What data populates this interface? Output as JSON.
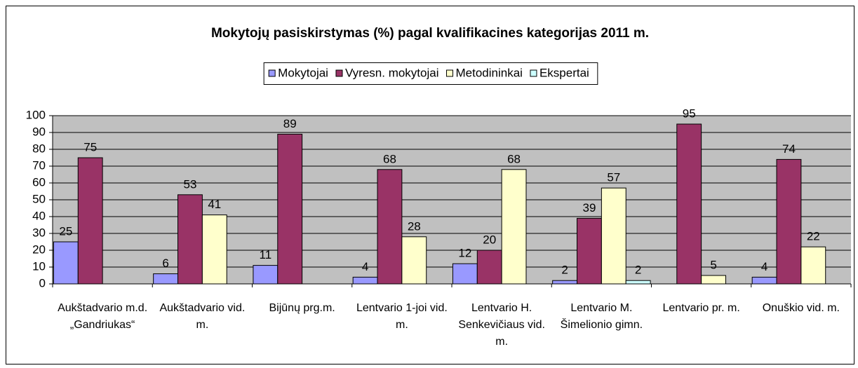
{
  "chart_data": {
    "type": "bar",
    "title": "Mokytojų pasiskirstymas (%) pagal kvalifikacines kategorijas 2011 m.",
    "categories": [
      "Aukštadvario m.d. „Gandriukas“",
      "Aukštadvario vid. m.",
      "Bijūnų prg.m.",
      "Lentvario 1-joi vid. m.",
      "Lentvario H. Senkevičiaus vid. m.",
      "Lentvario M. Šimelionio gimn.",
      "Lentvario pr. m.",
      "Onuškio vid. m."
    ],
    "series": [
      {
        "name": "Mokytojai",
        "color": "#9999ff",
        "values": [
          25,
          6,
          11,
          4,
          12,
          2,
          null,
          4
        ]
      },
      {
        "name": "Vyresn. mokytojai",
        "color": "#993366",
        "values": [
          75,
          53,
          89,
          68,
          20,
          39,
          95,
          74
        ]
      },
      {
        "name": "Metodininkai",
        "color": "#ffffcc",
        "values": [
          null,
          41,
          null,
          28,
          68,
          57,
          5,
          22
        ]
      },
      {
        "name": "Ekspertai",
        "color": "#ccffff",
        "values": [
          null,
          null,
          null,
          null,
          null,
          2,
          null,
          null
        ]
      }
    ],
    "ylim": [
      0,
      100
    ],
    "yticks": [
      0,
      10,
      20,
      30,
      40,
      50,
      60,
      70,
      80,
      90,
      100
    ],
    "grid": true,
    "legend": "top"
  }
}
